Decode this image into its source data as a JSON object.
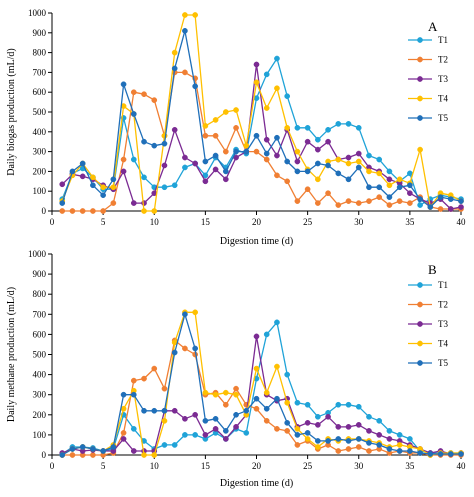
{
  "chart_data": [
    {
      "type": "line",
      "panel_label": "A",
      "xlabel": "Digestion time (d)",
      "ylabel": "Daily biogas production (mL/d)",
      "xlim": [
        0,
        40
      ],
      "ylim": [
        0,
        1000
      ],
      "xticks": [
        0,
        5,
        10,
        15,
        20,
        25,
        30,
        35,
        40
      ],
      "yticks": [
        0,
        100,
        200,
        300,
        400,
        500,
        600,
        700,
        800,
        900,
        1000
      ],
      "grid": false,
      "legend_position": "right",
      "x": [
        1,
        2,
        3,
        4,
        5,
        6,
        7,
        8,
        9,
        10,
        11,
        12,
        13,
        14,
        15,
        16,
        17,
        18,
        19,
        20,
        21,
        22,
        23,
        24,
        25,
        26,
        27,
        28,
        29,
        30,
        31,
        32,
        33,
        34,
        35,
        36,
        37,
        38,
        39,
        40
      ],
      "series": [
        {
          "name": "T1",
          "color": "#1fa3d8",
          "values": [
            60,
            190,
            215,
            170,
            110,
            110,
            470,
            260,
            170,
            120,
            120,
            130,
            220,
            240,
            180,
            270,
            220,
            310,
            290,
            570,
            690,
            770,
            580,
            420,
            420,
            360,
            410,
            440,
            440,
            420,
            280,
            260,
            200,
            150,
            190,
            30,
            60,
            80,
            70,
            60
          ]
        },
        {
          "name": "T2",
          "color": "#f07f33",
          "values": [
            0,
            0,
            0,
            0,
            0,
            40,
            260,
            600,
            590,
            560,
            380,
            700,
            700,
            670,
            380,
            380,
            300,
            420,
            300,
            300,
            260,
            180,
            150,
            50,
            110,
            40,
            90,
            30,
            50,
            40,
            50,
            70,
            30,
            50,
            40,
            70,
            20,
            10,
            10,
            10
          ]
        },
        {
          "name": "T3",
          "color": "#7b2b93",
          "values": [
            135,
            185,
            175,
            160,
            130,
            110,
            200,
            40,
            40,
            90,
            230,
            410,
            270,
            240,
            150,
            210,
            160,
            270,
            300,
            740,
            360,
            280,
            410,
            250,
            350,
            310,
            350,
            260,
            270,
            290,
            220,
            200,
            160,
            140,
            90,
            60,
            40,
            60,
            10,
            20
          ]
        },
        {
          "name": "T4",
          "color": "#ffc000",
          "values": [
            50,
            180,
            240,
            170,
            120,
            120,
            530,
            490,
            0,
            0,
            380,
            800,
            990,
            990,
            430,
            460,
            500,
            510,
            330,
            650,
            520,
            620,
            420,
            300,
            210,
            160,
            250,
            260,
            240,
            250,
            200,
            190,
            130,
            160,
            140,
            310,
            20,
            90,
            80,
            50
          ]
        },
        {
          "name": "T5",
          "color": "#1f6fb9",
          "values": [
            40,
            200,
            240,
            130,
            80,
            160,
            640,
            490,
            350,
            330,
            340,
            720,
            910,
            630,
            250,
            280,
            200,
            300,
            300,
            380,
            290,
            370,
            250,
            200,
            200,
            240,
            230,
            190,
            160,
            220,
            120,
            120,
            70,
            120,
            130,
            60,
            20,
            70,
            60,
            50
          ]
        }
      ]
    },
    {
      "type": "line",
      "panel_label": "B",
      "xlabel": "Digestion time (d)",
      "ylabel": "Daily methane production (mL/d)",
      "xlim": [
        0,
        40
      ],
      "ylim": [
        0,
        1000
      ],
      "xticks": [
        0,
        5,
        10,
        15,
        20,
        25,
        30,
        35,
        40
      ],
      "yticks": [
        0,
        100,
        200,
        300,
        400,
        500,
        600,
        700,
        800,
        900,
        1000
      ],
      "grid": false,
      "legend_position": "right",
      "x": [
        1,
        2,
        3,
        4,
        5,
        6,
        7,
        8,
        9,
        10,
        11,
        12,
        13,
        14,
        15,
        16,
        17,
        18,
        19,
        20,
        21,
        22,
        23,
        24,
        25,
        26,
        27,
        28,
        29,
        30,
        31,
        32,
        33,
        34,
        35,
        36,
        37,
        38,
        39,
        40
      ],
      "series": [
        {
          "name": "T1",
          "color": "#1fa3d8",
          "values": [
            5,
            40,
            40,
            35,
            20,
            30,
            200,
            130,
            70,
            30,
            50,
            50,
            100,
            100,
            80,
            110,
            80,
            130,
            110,
            380,
            600,
            660,
            400,
            260,
            250,
            190,
            210,
            250,
            250,
            240,
            190,
            170,
            120,
            100,
            80,
            20,
            10,
            10,
            10,
            10
          ]
        },
        {
          "name": "T2",
          "color": "#f07f33",
          "values": [
            0,
            0,
            0,
            0,
            0,
            10,
            110,
            370,
            380,
            430,
            330,
            570,
            530,
            500,
            300,
            310,
            250,
            330,
            250,
            230,
            170,
            130,
            120,
            50,
            70,
            30,
            50,
            20,
            30,
            40,
            20,
            30,
            10,
            20,
            10,
            10,
            0,
            0,
            0,
            0
          ]
        },
        {
          "name": "T3",
          "color": "#7b2b93",
          "values": [
            10,
            30,
            20,
            25,
            20,
            20,
            80,
            20,
            20,
            20,
            220,
            220,
            180,
            200,
            100,
            130,
            80,
            140,
            200,
            590,
            300,
            270,
            280,
            140,
            160,
            150,
            190,
            140,
            140,
            150,
            120,
            100,
            80,
            70,
            50,
            30,
            10,
            20,
            5,
            10
          ]
        },
        {
          "name": "T4",
          "color": "#ffc000",
          "values": [
            0,
            30,
            40,
            30,
            20,
            50,
            230,
            320,
            0,
            0,
            170,
            560,
            710,
            710,
            310,
            300,
            310,
            300,
            200,
            430,
            310,
            440,
            260,
            130,
            80,
            40,
            80,
            70,
            80,
            80,
            70,
            60,
            40,
            50,
            40,
            30,
            0,
            10,
            10,
            10
          ]
        },
        {
          "name": "T5",
          "color": "#1f6fb9",
          "values": [
            0,
            30,
            40,
            30,
            20,
            40,
            300,
            300,
            220,
            220,
            220,
            510,
            700,
            530,
            170,
            180,
            120,
            200,
            220,
            280,
            230,
            280,
            160,
            100,
            110,
            70,
            70,
            80,
            70,
            80,
            60,
            50,
            30,
            20,
            20,
            10,
            5,
            5,
            5,
            5
          ]
        }
      ]
    }
  ]
}
